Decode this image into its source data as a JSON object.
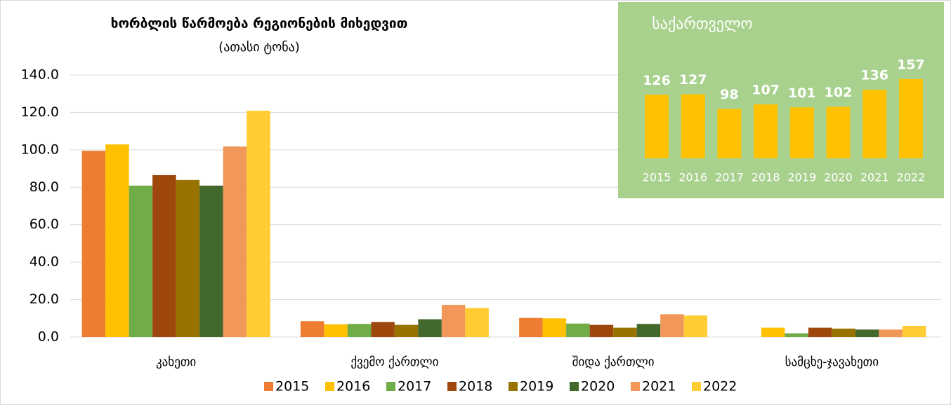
{
  "chart_data": [
    {
      "type": "bar",
      "title": "ხორბლის წარმოება რეგიონების მიხედვით",
      "subtitle": "(ათასი ტონა)",
      "categories": [
        "კახეთი",
        "ქვემო ქართლი",
        "შიდა ქართლი",
        "სამცხე-ჯავახეთი"
      ],
      "series": [
        {
          "name": "2015",
          "color": "#ed7d31",
          "values": [
            99.5,
            8.5,
            10.2,
            0
          ]
        },
        {
          "name": "2016",
          "color": "#ffc000",
          "values": [
            102.9,
            6.8,
            10.0,
            5.0
          ]
        },
        {
          "name": "2017",
          "color": "#70ad47",
          "values": [
            80.9,
            7.0,
            7.2,
            2.0
          ]
        },
        {
          "name": "2018",
          "color": "#9e480e",
          "values": [
            86.5,
            8.0,
            6.5,
            5.0
          ]
        },
        {
          "name": "2019",
          "color": "#997300",
          "values": [
            83.9,
            6.5,
            5.0,
            4.5
          ]
        },
        {
          "name": "2020",
          "color": "#43682b",
          "values": [
            80.9,
            9.5,
            7.0,
            4.0
          ]
        },
        {
          "name": "2021",
          "color": "#f1975a",
          "values": [
            101.8,
            17.2,
            12.2,
            4.0
          ]
        },
        {
          "name": "2022",
          "color": "#ffcd33",
          "values": [
            120.9,
            15.5,
            11.5,
            6.0
          ]
        }
      ],
      "ylim": [
        0,
        140
      ],
      "yticks": [
        {
          "value": 0,
          "label": "0.0"
        },
        {
          "value": 20,
          "label": "20.0"
        },
        {
          "value": 40,
          "label": "40.0"
        },
        {
          "value": 60,
          "label": "60.0"
        },
        {
          "value": 80,
          "label": "80.0"
        },
        {
          "value": 100,
          "label": "100.0"
        },
        {
          "value": 120,
          "label": "120.0"
        },
        {
          "value": 140,
          "label": "140.0"
        }
      ],
      "grid": true,
      "legend": "bottom"
    },
    {
      "type": "bar",
      "title": "საქართველო",
      "categories": [
        "2015",
        "2016",
        "2017",
        "2018",
        "2019",
        "2020",
        "2021",
        "2022"
      ],
      "values": [
        126,
        127,
        98,
        107,
        101,
        102,
        136,
        157
      ],
      "color": "#ffc000",
      "background": "#a9d18e"
    }
  ]
}
